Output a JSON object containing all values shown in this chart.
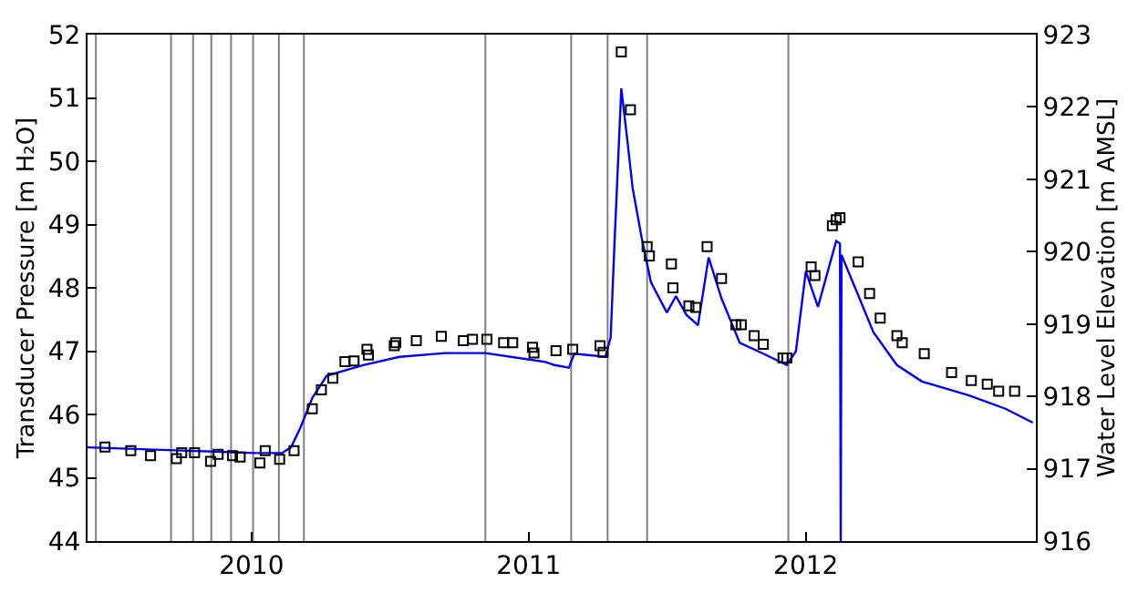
{
  "chart_data": {
    "type": "line",
    "ylabel": "Transducer Pressure [m H₂O]",
    "y2label": "Water Level Elevation [m AMSL]",
    "xlim": [
      "2009-05-30",
      "2012-10-30"
    ],
    "xticks": [
      {
        "value": "2010-01-01",
        "label": "2010"
      },
      {
        "value": "2011-01-01",
        "label": "2011"
      },
      {
        "value": "2012-01-01",
        "label": "2012"
      }
    ],
    "ylim": [
      44,
      52
    ],
    "yticks": [
      44,
      45,
      46,
      47,
      48,
      49,
      50,
      51,
      52
    ],
    "y2lim": [
      916,
      923
    ],
    "y2ticks": [
      916,
      917,
      918,
      919,
      920,
      921,
      922,
      923
    ],
    "grid": false,
    "series": [
      {
        "color": "#0000ff",
        "line_style": "solid",
        "marker": "none",
        "x": [
          "2009-05-30",
          "2009-10-01",
          "2010-01-06",
          "2010-02-10",
          "2010-02-22",
          "2010-03-06",
          "2010-03-22",
          "2010-04-10",
          "2010-05-28",
          "2010-07-15",
          "2010-09-13",
          "2010-11-05",
          "2010-12-31",
          "2011-01-23",
          "2011-02-04",
          "2011-02-23",
          "2011-03-02",
          "2011-04-12",
          "2011-04-19",
          "2011-04-24",
          "2011-05-03",
          "2011-05-10",
          "2011-05-18",
          "2011-05-30",
          "2011-06-11",
          "2011-07-02",
          "2011-07-14",
          "2011-07-28",
          "2011-08-12",
          "2011-08-26",
          "2011-09-12",
          "2011-10-06",
          "2011-11-06",
          "2011-12-07",
          "2011-12-19",
          "2012-01-01",
          "2012-01-17",
          "2012-02-10",
          "2012-02-15",
          "2012-02-16",
          "2012-02-17",
          "2012-03-06",
          "2012-03-30",
          "2012-04-30",
          "2012-06-02",
          "2012-08-03",
          "2012-09-20",
          "2012-10-26"
        ],
        "values": [
          45.48,
          45.43,
          45.39,
          45.39,
          45.48,
          45.78,
          46.26,
          46.61,
          46.78,
          46.91,
          46.97,
          46.97,
          46.87,
          46.83,
          46.78,
          46.74,
          46.96,
          46.91,
          47.22,
          48.7,
          51.15,
          50.43,
          49.57,
          48.78,
          48.09,
          47.61,
          47.87,
          47.57,
          47.41,
          48.48,
          47.83,
          47.13,
          46.96,
          46.78,
          47.0,
          48.26,
          47.7,
          48.74,
          48.7,
          44,
          48.52,
          48.0,
          47.3,
          46.78,
          46.52,
          46.3,
          46.09,
          45.87
        ]
      },
      {
        "type": "scatter",
        "color": "#000000",
        "axis": "y2",
        "marker": "square",
        "x": [
          "2009-06-22",
          "2009-07-26",
          "2009-08-21",
          "2009-09-24",
          "2009-10-01",
          "2009-10-18",
          "2009-11-08",
          "2009-11-18",
          "2009-12-07",
          "2009-12-17",
          "2010-01-12",
          "2010-01-19",
          "2010-02-07",
          "2010-02-26",
          "2010-03-22",
          "2010-04-03",
          "2010-04-18",
          "2010-05-04",
          "2010-05-16",
          "2010-06-02",
          "2010-06-04",
          "2010-07-08",
          "2010-07-10",
          "2010-08-06",
          "2010-09-08",
          "2010-10-07",
          "2010-10-19",
          "2010-11-07",
          "2010-11-29",
          "2010-12-11",
          "2011-01-06",
          "2011-01-08",
          "2011-02-06",
          "2011-02-28",
          "2011-04-05",
          "2011-04-09",
          "2011-05-03",
          "2011-05-15",
          "2011-06-06",
          "2011-06-09",
          "2011-07-08",
          "2011-07-10",
          "2011-07-31",
          "2011-08-09",
          "2011-08-24",
          "2011-09-12",
          "2011-10-01",
          "2011-10-08",
          "2011-10-25",
          "2011-11-06",
          "2011-12-02",
          "2011-12-07",
          "2012-01-08",
          "2012-01-13",
          "2012-02-05",
          "2012-02-10",
          "2012-02-15",
          "2012-03-10",
          "2012-03-25",
          "2012-04-08",
          "2012-04-30",
          "2012-05-07",
          "2012-06-05",
          "2012-07-11",
          "2012-08-06",
          "2012-08-27",
          "2012-09-11",
          "2012-10-02"
        ],
        "values": [
          917.3,
          917.25,
          917.18,
          917.14,
          917.22,
          917.22,
          917.1,
          917.2,
          917.18,
          917.16,
          917.08,
          917.25,
          917.13,
          917.25,
          917.83,
          918.09,
          918.25,
          918.48,
          918.49,
          918.65,
          918.57,
          918.7,
          918.74,
          918.77,
          918.83,
          918.77,
          918.79,
          918.79,
          918.74,
          918.74,
          918.68,
          918.6,
          918.63,
          918.65,
          918.7,
          918.61,
          922.76,
          921.96,
          920.07,
          919.94,
          919.83,
          919.5,
          919.25,
          919.23,
          920.07,
          919.63,
          918.99,
          918.99,
          918.84,
          918.72,
          918.53,
          918.53,
          919.79,
          919.67,
          920.36,
          920.44,
          920.47,
          919.86,
          919.42,
          919.08,
          918.84,
          918.74,
          918.59,
          918.33,
          918.22,
          918.17,
          918.07,
          918.07
        ]
      }
    ],
    "ref_lines": [
      {
        "axis": "x",
        "value": "2009-06-10",
        "color": "#808080"
      },
      {
        "axis": "x",
        "value": "2009-09-17",
        "color": "#808080"
      },
      {
        "axis": "x",
        "value": "2009-10-16",
        "color": "#808080"
      },
      {
        "axis": "x",
        "value": "2009-11-09",
        "color": "#808080"
      },
      {
        "axis": "x",
        "value": "2009-12-05",
        "color": "#808080"
      },
      {
        "axis": "x",
        "value": "2010-01-03",
        "color": "#808080"
      },
      {
        "axis": "x",
        "value": "2010-02-06",
        "color": "#808080"
      },
      {
        "axis": "x",
        "value": "2010-03-11",
        "color": "#808080"
      },
      {
        "axis": "x",
        "value": "2010-11-05",
        "color": "#808080"
      },
      {
        "axis": "x",
        "value": "2011-02-26",
        "color": "#808080"
      },
      {
        "axis": "x",
        "value": "2011-04-15",
        "color": "#808080"
      },
      {
        "axis": "x",
        "value": "2011-06-06",
        "color": "#808080"
      },
      {
        "axis": "x",
        "value": "2011-12-09",
        "color": "#808080"
      }
    ]
  }
}
